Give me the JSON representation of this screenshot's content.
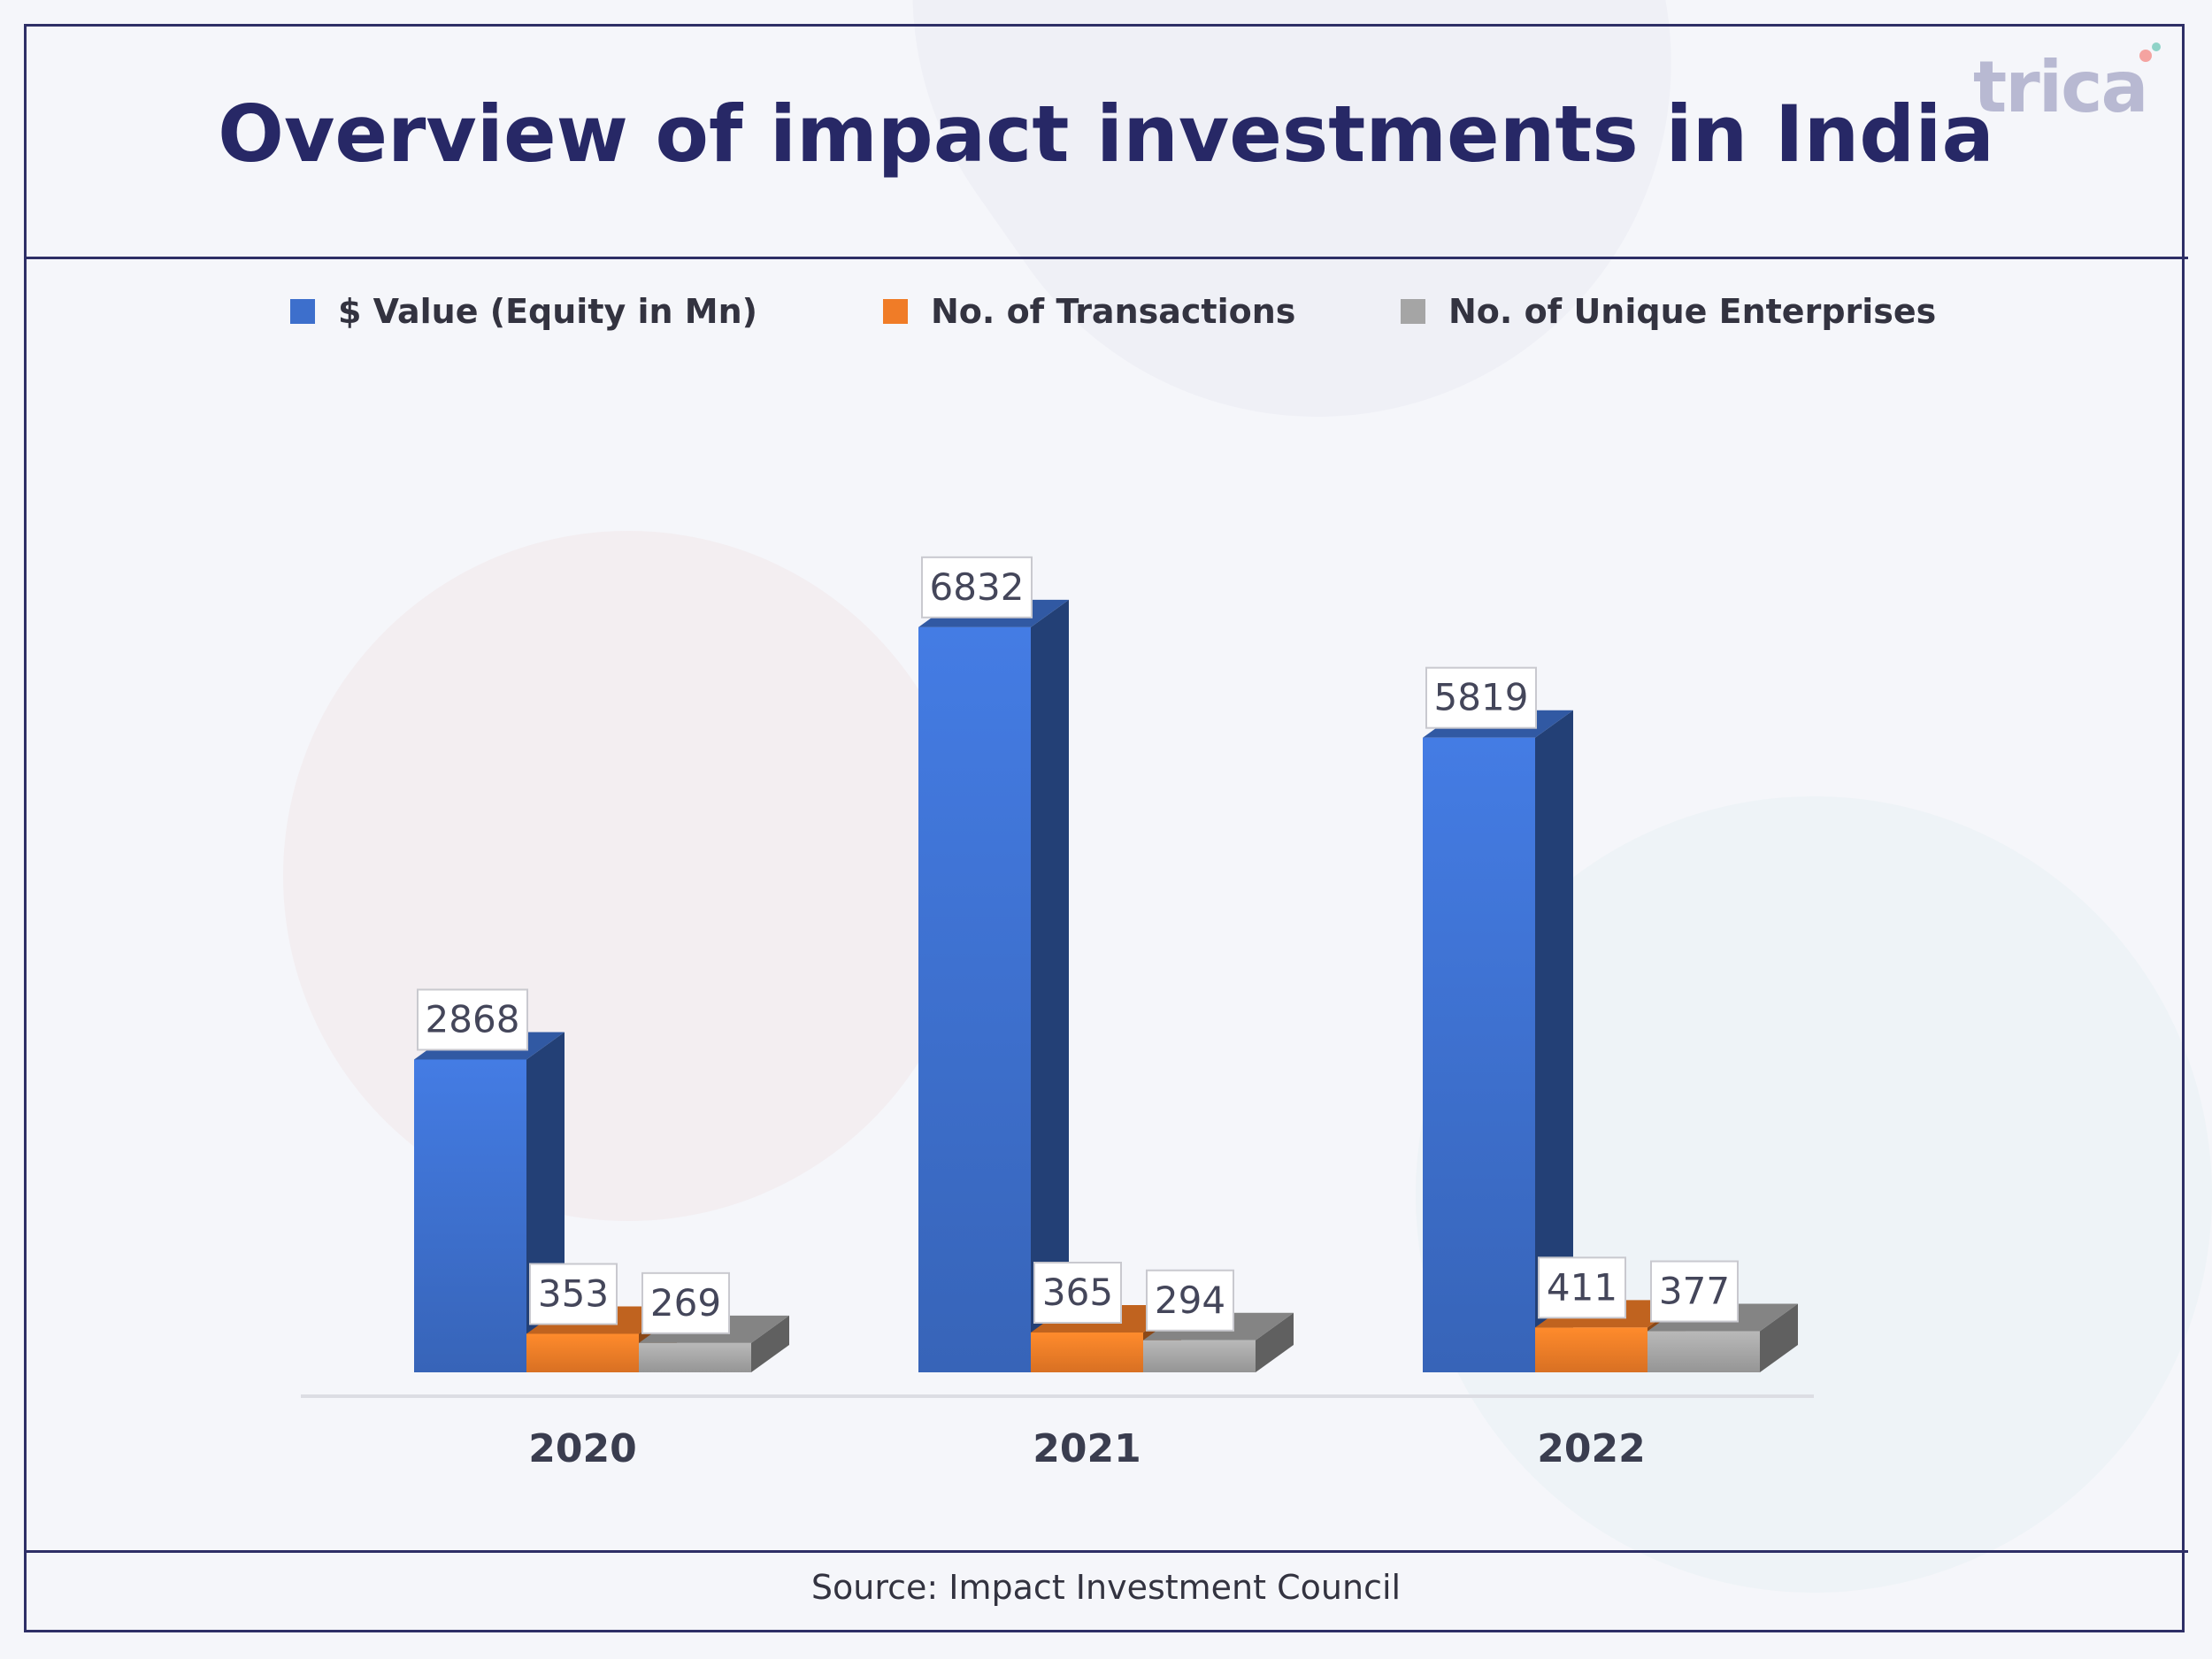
{
  "header": {
    "title": "Overview of impact investments in India",
    "logo_text": "trica"
  },
  "footer": {
    "source": "Source: Impact Investment Council"
  },
  "chart_data": {
    "type": "bar",
    "style": "3d-clustered",
    "categories": [
      "2020",
      "2021",
      "2022"
    ],
    "series": [
      {
        "name": "$ Value (Equity in Mn)",
        "values": [
          2868,
          6832,
          5819
        ],
        "color": "#3d6fcc"
      },
      {
        "name": "No. of Transactions",
        "values": [
          353,
          365,
          411
        ],
        "color": "#f07c27"
      },
      {
        "name": "No. of Unique Enterprises",
        "values": [
          269,
          294,
          377
        ],
        "color": "#a5a5a5"
      }
    ],
    "ylim": [
      0,
      7800
    ],
    "legend_position": "top",
    "data_labels": true,
    "grid": false
  }
}
